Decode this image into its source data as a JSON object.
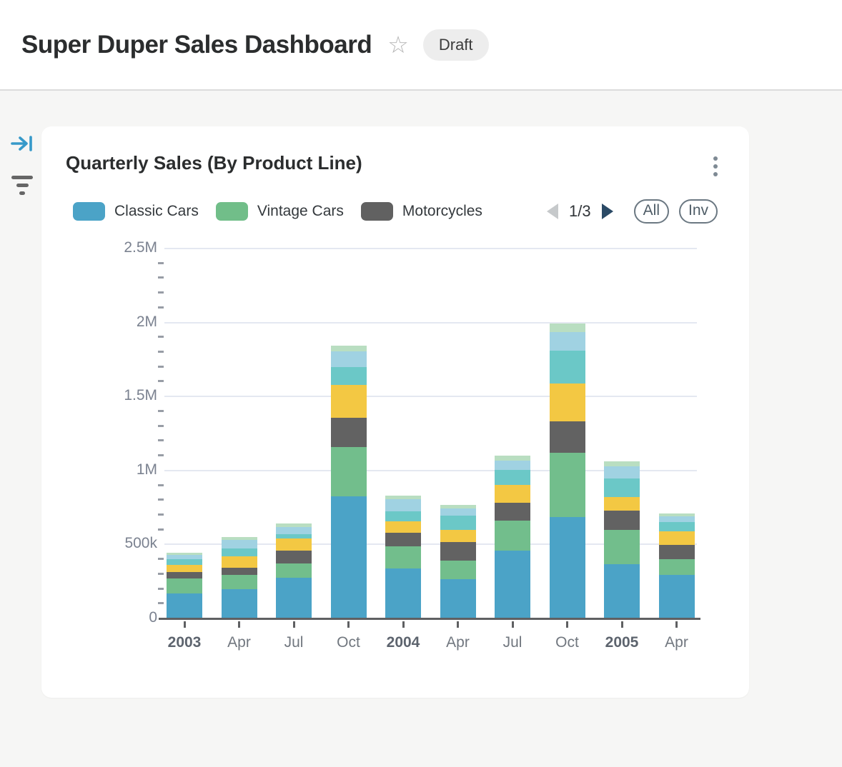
{
  "header": {
    "title": "Super Duper Sales Dashboard",
    "badge": "Draft",
    "star_icon": "star-outline",
    "accent_color": "#3699c9"
  },
  "sidebar": {
    "icons": [
      "collapse-panel-icon",
      "filter-icon"
    ]
  },
  "card": {
    "title": "Quarterly Sales (By Product Line)",
    "menu_icon": "kebab-menu",
    "legend": {
      "visible_items": [
        {
          "label": "Classic Cars",
          "color": "#4BA3C7"
        },
        {
          "label": "Vintage Cars",
          "color": "#71BE89"
        },
        {
          "label": "Motorcycles",
          "color": "#616161"
        }
      ],
      "pagination": {
        "current": "1/3",
        "prev_enabled": false,
        "next_enabled": true
      },
      "buttons": [
        {
          "label": "All"
        },
        {
          "label": "Inv"
        }
      ]
    }
  },
  "chart_data": {
    "type": "bar",
    "stacked": true,
    "title": "Quarterly Sales (By Product Line)",
    "categories": [
      "2003",
      "Apr",
      "Jul",
      "Oct",
      "2004",
      "Apr",
      "Jul",
      "Oct",
      "2005",
      "Apr"
    ],
    "categories_bold": [
      true,
      false,
      false,
      false,
      true,
      false,
      false,
      false,
      true,
      false
    ],
    "series": [
      {
        "name": "Classic Cars",
        "color": "#4BA3C7",
        "values": [
          168000,
          197000,
          273000,
          825000,
          336000,
          264000,
          460000,
          686000,
          369000,
          293000
        ]
      },
      {
        "name": "Vintage Cars",
        "color": "#72BE8C",
        "values": [
          101000,
          96000,
          101000,
          331000,
          153000,
          129000,
          201000,
          436000,
          230000,
          110000
        ]
      },
      {
        "name": "Motorcycles",
        "color": "#626262",
        "values": [
          43000,
          48000,
          86000,
          201000,
          91000,
          125000,
          120000,
          211000,
          129000,
          96000
        ]
      },
      {
        "name": "",
        "color_name": "yellow",
        "color": "#F3C843",
        "values": [
          48000,
          77000,
          82000,
          221000,
          77000,
          82000,
          120000,
          254000,
          91000,
          91000
        ]
      },
      {
        "name": "",
        "color_name": "teal",
        "color": "#6BC8C7",
        "values": [
          43000,
          53000,
          29000,
          120000,
          67000,
          96000,
          101000,
          225000,
          125000,
          62000
        ]
      },
      {
        "name": "",
        "color_name": "light-blue",
        "color": "#A0D2E2",
        "values": [
          29000,
          62000,
          48000,
          105000,
          82000,
          48000,
          67000,
          125000,
          82000,
          38000
        ]
      },
      {
        "name": "",
        "color_name": "pale-green",
        "color": "#B9DEC1",
        "values": [
          10000,
          19000,
          24000,
          43000,
          24000,
          24000,
          34000,
          58000,
          34000,
          19000
        ]
      }
    ],
    "ylim": [
      0,
      2500000
    ],
    "yticks": [
      {
        "label": "0",
        "value": 0
      },
      {
        "label": "500k",
        "value": 500000
      },
      {
        "label": "1M",
        "value": 1000000
      },
      {
        "label": "1.5M",
        "value": 1500000
      },
      {
        "label": "2M",
        "value": 2000000
      },
      {
        "label": "2.5M",
        "value": 2500000
      }
    ],
    "minor_tick_interval": 100000,
    "grid": "horizontal",
    "legend_position": "top"
  }
}
